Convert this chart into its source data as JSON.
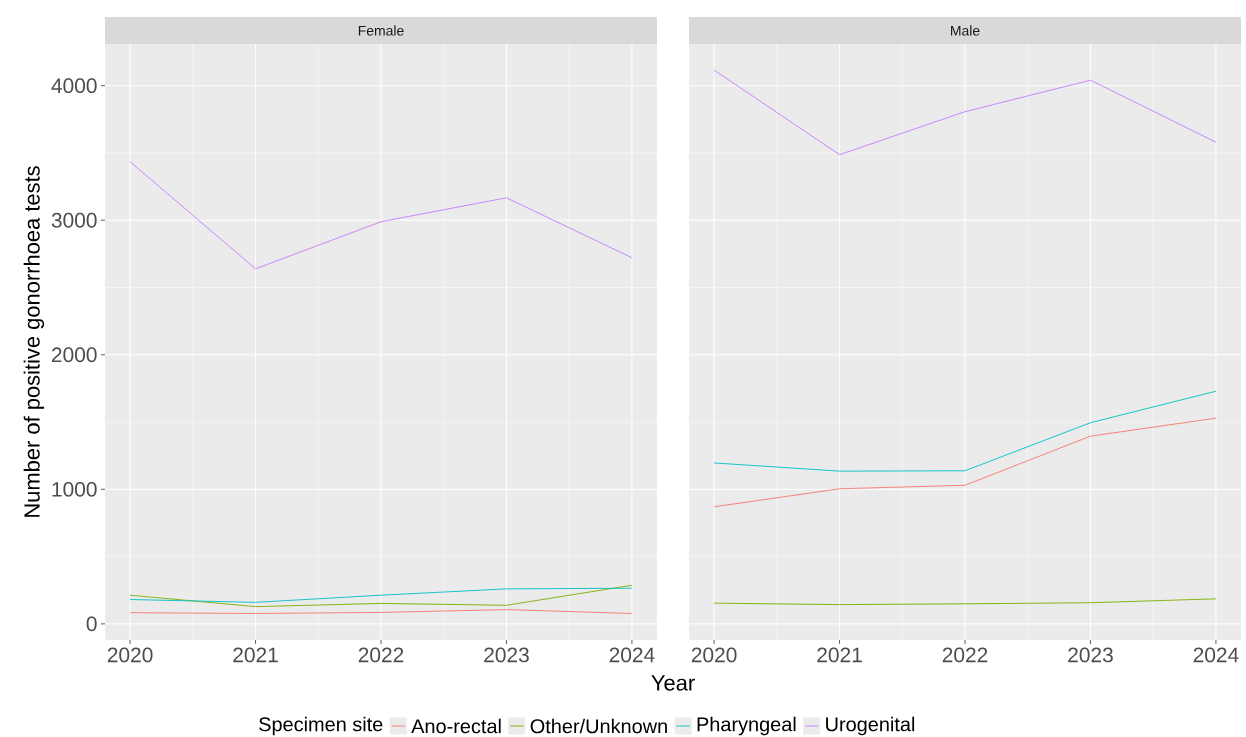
{
  "chart_data": [
    {
      "type": "line",
      "title": "Female",
      "xlabel": "Year",
      "ylabel": "Number of positive gonorrhoea tests",
      "legend_title": "Specimen site",
      "x": [
        2020,
        2021,
        2022,
        2023,
        2024
      ],
      "xlim": [
        2019.8,
        2024.2
      ],
      "xticks": [
        2020,
        2021,
        2022,
        2023,
        2024
      ],
      "ylim": [
        -120,
        4310
      ],
      "yticks": [
        0,
        1000,
        2000,
        3000,
        4000
      ],
      "grid": true,
      "legend": "bottom",
      "series": [
        {
          "name": "Ano-rectal",
          "color": "#F8766D",
          "values": [
            83,
            77,
            85,
            106,
            77
          ]
        },
        {
          "name": "Other/Unknown",
          "color": "#7CAE00",
          "values": [
            213,
            128,
            152,
            138,
            287
          ]
        },
        {
          "name": "Pharyngeal",
          "color": "#00BFC4",
          "values": [
            181,
            160,
            213,
            260,
            265
          ]
        },
        {
          "name": "Urogenital",
          "color": "#C77CFF",
          "values": [
            3435,
            2639,
            2989,
            3167,
            2721
          ]
        }
      ]
    },
    {
      "type": "line",
      "title": "Male",
      "x": [
        2020,
        2021,
        2022,
        2023,
        2024
      ],
      "xlim": [
        2019.8,
        2024.2
      ],
      "xticks": [
        2020,
        2021,
        2022,
        2023,
        2024
      ],
      "ylim": [
        -120,
        4310
      ],
      "yticks": [
        0,
        1000,
        2000,
        3000,
        4000
      ],
      "grid": true,
      "tick_labels": "x",
      "series": [
        {
          "color": "#F8766D",
          "values": [
            870,
            1004,
            1030,
            1395,
            1529
          ]
        },
        {
          "color": "#7CAE00",
          "values": [
            154,
            143,
            149,
            157,
            186
          ]
        },
        {
          "color": "#00BFC4",
          "values": [
            1196,
            1135,
            1138,
            1495,
            1729
          ]
        },
        {
          "color": "#C77CFF",
          "values": [
            4116,
            3487,
            3807,
            4041,
            3580
          ]
        }
      ]
    }
  ]
}
